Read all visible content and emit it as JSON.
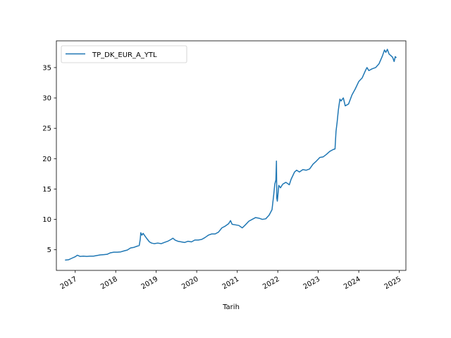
{
  "chart_data": {
    "type": "line",
    "title": "",
    "xlabel": "Tarih",
    "ylabel": "",
    "xlim": [
      "2016-07-15",
      "2025-03-01"
    ],
    "ylim": [
      1.6,
      39.4
    ],
    "grid": false,
    "legend_position": "top-left",
    "x_ticks": [
      "2017",
      "2018",
      "2019",
      "2020",
      "2021",
      "2022",
      "2023",
      "2024",
      "2025"
    ],
    "y_ticks": [
      "5",
      "10",
      "15",
      "20",
      "25",
      "30",
      "35"
    ],
    "series": [
      {
        "name": "TP_DK_EUR_A_YTL",
        "color": "#1f77b4",
        "points": [
          [
            "2016-10-01",
            3.3
          ],
          [
            "2016-11-01",
            3.35
          ],
          [
            "2016-12-01",
            3.6
          ],
          [
            "2017-01-01",
            3.85
          ],
          [
            "2017-01-20",
            4.1
          ],
          [
            "2017-02-15",
            3.9
          ],
          [
            "2017-03-15",
            3.95
          ],
          [
            "2017-04-15",
            3.9
          ],
          [
            "2017-05-15",
            3.95
          ],
          [
            "2017-06-15",
            3.95
          ],
          [
            "2017-07-15",
            4.05
          ],
          [
            "2017-08-15",
            4.15
          ],
          [
            "2017-09-15",
            4.2
          ],
          [
            "2017-10-15",
            4.25
          ],
          [
            "2017-11-15",
            4.5
          ],
          [
            "2017-12-15",
            4.6
          ],
          [
            "2018-01-15",
            4.6
          ],
          [
            "2018-02-15",
            4.65
          ],
          [
            "2018-03-15",
            4.8
          ],
          [
            "2018-04-15",
            4.95
          ],
          [
            "2018-05-15",
            5.3
          ],
          [
            "2018-06-15",
            5.4
          ],
          [
            "2018-07-15",
            5.6
          ],
          [
            "2018-08-01",
            5.7
          ],
          [
            "2018-08-10",
            6.7
          ],
          [
            "2018-08-15",
            7.8
          ],
          [
            "2018-08-25",
            7.4
          ],
          [
            "2018-09-05",
            7.7
          ],
          [
            "2018-09-20",
            7.3
          ],
          [
            "2018-10-10",
            6.8
          ],
          [
            "2018-11-01",
            6.3
          ],
          [
            "2018-11-20",
            6.1
          ],
          [
            "2018-12-15",
            6.0
          ],
          [
            "2019-01-15",
            6.1
          ],
          [
            "2019-02-15",
            6.0
          ],
          [
            "2019-03-15",
            6.2
          ],
          [
            "2019-04-15",
            6.4
          ],
          [
            "2019-05-15",
            6.7
          ],
          [
            "2019-06-01",
            6.9
          ],
          [
            "2019-06-20",
            6.6
          ],
          [
            "2019-07-15",
            6.4
          ],
          [
            "2019-08-15",
            6.3
          ],
          [
            "2019-09-15",
            6.2
          ],
          [
            "2019-10-15",
            6.4
          ],
          [
            "2019-11-15",
            6.3
          ],
          [
            "2019-12-15",
            6.6
          ],
          [
            "2020-01-15",
            6.6
          ],
          [
            "2020-02-15",
            6.7
          ],
          [
            "2020-03-15",
            7.0
          ],
          [
            "2020-04-15",
            7.4
          ],
          [
            "2020-05-15",
            7.6
          ],
          [
            "2020-06-15",
            7.6
          ],
          [
            "2020-07-15",
            7.9
          ],
          [
            "2020-08-15",
            8.6
          ],
          [
            "2020-09-15",
            8.9
          ],
          [
            "2020-10-15",
            9.3
          ],
          [
            "2020-11-01",
            9.8
          ],
          [
            "2020-11-15",
            9.2
          ],
          [
            "2020-12-15",
            9.1
          ],
          [
            "2021-01-15",
            9.0
          ],
          [
            "2021-02-15",
            8.6
          ],
          [
            "2021-03-15",
            9.1
          ],
          [
            "2021-04-15",
            9.7
          ],
          [
            "2021-05-15",
            10.0
          ],
          [
            "2021-06-15",
            10.3
          ],
          [
            "2021-07-15",
            10.2
          ],
          [
            "2021-08-15",
            10.0
          ],
          [
            "2021-09-15",
            10.1
          ],
          [
            "2021-10-15",
            10.7
          ],
          [
            "2021-11-10",
            11.6
          ],
          [
            "2021-11-25",
            14.0
          ],
          [
            "2021-12-05",
            15.8
          ],
          [
            "2021-12-15",
            16.5
          ],
          [
            "2021-12-20",
            19.6
          ],
          [
            "2021-12-23",
            13.5
          ],
          [
            "2021-12-28",
            13.0
          ],
          [
            "2022-01-10",
            15.6
          ],
          [
            "2022-01-25",
            15.2
          ],
          [
            "2022-02-15",
            15.8
          ],
          [
            "2022-03-15",
            16.1
          ],
          [
            "2022-04-15",
            15.7
          ],
          [
            "2022-05-01",
            16.6
          ],
          [
            "2022-06-01",
            17.8
          ],
          [
            "2022-06-20",
            18.1
          ],
          [
            "2022-07-15",
            17.8
          ],
          [
            "2022-08-15",
            18.2
          ],
          [
            "2022-09-15",
            18.1
          ],
          [
            "2022-10-15",
            18.3
          ],
          [
            "2022-11-15",
            19.1
          ],
          [
            "2022-12-15",
            19.6
          ],
          [
            "2023-01-15",
            20.2
          ],
          [
            "2023-02-15",
            20.3
          ],
          [
            "2023-03-15",
            20.7
          ],
          [
            "2023-04-15",
            21.2
          ],
          [
            "2023-05-15",
            21.5
          ],
          [
            "2023-06-01",
            21.6
          ],
          [
            "2023-06-10",
            24.5
          ],
          [
            "2023-06-20",
            26.0
          ],
          [
            "2023-07-01",
            28.0
          ],
          [
            "2023-07-15",
            29.8
          ],
          [
            "2023-07-25",
            29.5
          ],
          [
            "2023-08-15",
            30.0
          ],
          [
            "2023-09-01",
            28.7
          ],
          [
            "2023-10-01",
            29.0
          ],
          [
            "2023-11-01",
            30.5
          ],
          [
            "2023-12-01",
            31.5
          ],
          [
            "2024-01-01",
            32.7
          ],
          [
            "2024-02-01",
            33.3
          ],
          [
            "2024-03-01",
            34.5
          ],
          [
            "2024-03-15",
            35.0
          ],
          [
            "2024-04-01",
            34.5
          ],
          [
            "2024-05-01",
            34.8
          ],
          [
            "2024-06-01",
            35.0
          ],
          [
            "2024-07-01",
            35.6
          ],
          [
            "2024-08-01",
            36.9
          ],
          [
            "2024-08-20",
            37.9
          ],
          [
            "2024-09-01",
            37.5
          ],
          [
            "2024-09-15",
            38.0
          ],
          [
            "2024-10-01",
            37.2
          ],
          [
            "2024-10-15",
            37.0
          ],
          [
            "2024-11-01",
            36.7
          ],
          [
            "2024-11-15",
            36.0
          ],
          [
            "2024-11-25",
            36.8
          ],
          [
            "2024-12-05",
            36.6
          ]
        ]
      }
    ]
  }
}
